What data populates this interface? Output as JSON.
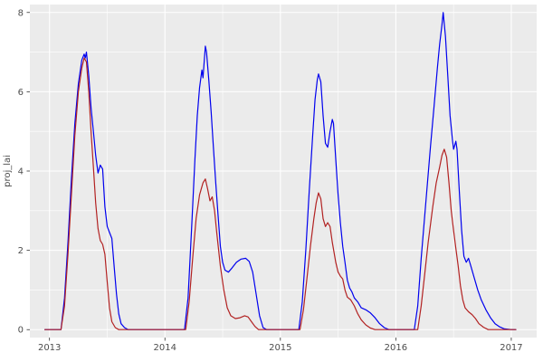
{
  "figure": {
    "background": "#FFFFFF",
    "panel_background": "#EBEBEB",
    "grid_color": "#FFFFFF",
    "axis_text_color": "#4D4D4D",
    "tick_mark_color": "#333333"
  },
  "chart_data": {
    "type": "line",
    "title": "",
    "xlabel": "",
    "ylabel": "proj_lai",
    "legend": "none",
    "grid": "major+minor",
    "xlim": [
      2012.83,
      2017.22
    ],
    "ylim": [
      -0.2,
      8.2
    ],
    "x_ticks": [
      "2013",
      "2014",
      "2015",
      "2016",
      "2017"
    ],
    "x_tick_values": [
      2013,
      2014,
      2015,
      2016,
      2017
    ],
    "y_ticks": [
      "0",
      "2",
      "4",
      "6",
      "8"
    ],
    "y_tick_values": [
      0,
      2,
      4,
      6,
      8
    ],
    "x_minor_ticks": [
      2013.5,
      2014.5,
      2015.5,
      2016.5
    ],
    "y_minor_ticks": [
      1,
      3,
      5,
      7
    ],
    "series": [
      {
        "name": "blue-series",
        "color": "#0000EE",
        "points": [
          [
            2012.96,
            0
          ],
          [
            2013.1,
            0
          ],
          [
            2013.13,
            0.8
          ],
          [
            2013.16,
            2.2
          ],
          [
            2013.19,
            3.8
          ],
          [
            2013.22,
            5.2
          ],
          [
            2013.25,
            6.2
          ],
          [
            2013.28,
            6.8
          ],
          [
            2013.3,
            6.95
          ],
          [
            2013.31,
            6.85
          ],
          [
            2013.32,
            7.0
          ],
          [
            2013.34,
            6.4
          ],
          [
            2013.36,
            5.6
          ],
          [
            2013.38,
            5.0
          ],
          [
            2013.4,
            4.4
          ],
          [
            2013.42,
            3.95
          ],
          [
            2013.44,
            4.15
          ],
          [
            2013.46,
            4.05
          ],
          [
            2013.48,
            3.1
          ],
          [
            2013.5,
            2.6
          ],
          [
            2013.52,
            2.45
          ],
          [
            2013.54,
            2.3
          ],
          [
            2013.56,
            1.6
          ],
          [
            2013.58,
            0.9
          ],
          [
            2013.6,
            0.4
          ],
          [
            2013.62,
            0.15
          ],
          [
            2013.65,
            0.05
          ],
          [
            2013.68,
            0
          ],
          [
            2014.17,
            0
          ],
          [
            2014.2,
            0.8
          ],
          [
            2014.23,
            2.5
          ],
          [
            2014.26,
            4.3
          ],
          [
            2014.28,
            5.4
          ],
          [
            2014.3,
            6.1
          ],
          [
            2014.32,
            6.55
          ],
          [
            2014.33,
            6.35
          ],
          [
            2014.35,
            7.15
          ],
          [
            2014.36,
            7.0
          ],
          [
            2014.38,
            6.3
          ],
          [
            2014.4,
            5.5
          ],
          [
            2014.42,
            4.6
          ],
          [
            2014.44,
            3.7
          ],
          [
            2014.46,
            2.9
          ],
          [
            2014.48,
            2.1
          ],
          [
            2014.5,
            1.7
          ],
          [
            2014.52,
            1.5
          ],
          [
            2014.55,
            1.45
          ],
          [
            2014.58,
            1.55
          ],
          [
            2014.62,
            1.7
          ],
          [
            2014.66,
            1.78
          ],
          [
            2014.7,
            1.8
          ],
          [
            2014.73,
            1.72
          ],
          [
            2014.76,
            1.45
          ],
          [
            2014.79,
            0.9
          ],
          [
            2014.82,
            0.35
          ],
          [
            2014.85,
            0.05
          ],
          [
            2014.88,
            0
          ],
          [
            2015.16,
            0
          ],
          [
            2015.19,
            0.7
          ],
          [
            2015.22,
            2.0
          ],
          [
            2015.25,
            3.5
          ],
          [
            2015.28,
            4.9
          ],
          [
            2015.3,
            5.8
          ],
          [
            2015.32,
            6.3
          ],
          [
            2015.33,
            6.45
          ],
          [
            2015.35,
            6.25
          ],
          [
            2015.37,
            5.4
          ],
          [
            2015.39,
            4.7
          ],
          [
            2015.41,
            4.6
          ],
          [
            2015.43,
            5.0
          ],
          [
            2015.45,
            5.3
          ],
          [
            2015.46,
            5.2
          ],
          [
            2015.48,
            4.3
          ],
          [
            2015.5,
            3.4
          ],
          [
            2015.52,
            2.7
          ],
          [
            2015.54,
            2.1
          ],
          [
            2015.56,
            1.7
          ],
          [
            2015.58,
            1.25
          ],
          [
            2015.6,
            1.05
          ],
          [
            2015.62,
            0.95
          ],
          [
            2015.64,
            0.8
          ],
          [
            2015.67,
            0.7
          ],
          [
            2015.7,
            0.55
          ],
          [
            2015.74,
            0.5
          ],
          [
            2015.78,
            0.42
          ],
          [
            2015.82,
            0.3
          ],
          [
            2015.86,
            0.15
          ],
          [
            2015.9,
            0.05
          ],
          [
            2015.94,
            0
          ],
          [
            2016.16,
            0
          ],
          [
            2016.19,
            0.6
          ],
          [
            2016.22,
            1.8
          ],
          [
            2016.26,
            3.2
          ],
          [
            2016.3,
            4.6
          ],
          [
            2016.33,
            5.6
          ],
          [
            2016.36,
            6.6
          ],
          [
            2016.38,
            7.2
          ],
          [
            2016.4,
            7.7
          ],
          [
            2016.41,
            8.0
          ],
          [
            2016.43,
            7.4
          ],
          [
            2016.45,
            6.4
          ],
          [
            2016.47,
            5.4
          ],
          [
            2016.49,
            4.8
          ],
          [
            2016.5,
            4.55
          ],
          [
            2016.52,
            4.75
          ],
          [
            2016.53,
            4.55
          ],
          [
            2016.55,
            3.5
          ],
          [
            2016.57,
            2.5
          ],
          [
            2016.59,
            1.85
          ],
          [
            2016.61,
            1.7
          ],
          [
            2016.63,
            1.8
          ],
          [
            2016.65,
            1.6
          ],
          [
            2016.68,
            1.3
          ],
          [
            2016.71,
            1.0
          ],
          [
            2016.74,
            0.75
          ],
          [
            2016.78,
            0.5
          ],
          [
            2016.82,
            0.3
          ],
          [
            2016.86,
            0.15
          ],
          [
            2016.9,
            0.07
          ],
          [
            2016.94,
            0.02
          ],
          [
            2017.0,
            0
          ],
          [
            2017.04,
            0
          ]
        ]
      },
      {
        "name": "dark-red-series",
        "color": "#B22222",
        "points": [
          [
            2012.96,
            0
          ],
          [
            2013.1,
            0
          ],
          [
            2013.13,
            0.6
          ],
          [
            2013.16,
            1.9
          ],
          [
            2013.19,
            3.4
          ],
          [
            2013.22,
            4.9
          ],
          [
            2013.25,
            6.0
          ],
          [
            2013.28,
            6.6
          ],
          [
            2013.3,
            6.85
          ],
          [
            2013.32,
            6.75
          ],
          [
            2013.34,
            6.0
          ],
          [
            2013.36,
            5.0
          ],
          [
            2013.38,
            4.1
          ],
          [
            2013.4,
            3.2
          ],
          [
            2013.42,
            2.55
          ],
          [
            2013.44,
            2.25
          ],
          [
            2013.46,
            2.15
          ],
          [
            2013.48,
            1.9
          ],
          [
            2013.5,
            1.2
          ],
          [
            2013.52,
            0.55
          ],
          [
            2013.54,
            0.2
          ],
          [
            2013.57,
            0.05
          ],
          [
            2013.6,
            0
          ],
          [
            2014.18,
            0
          ],
          [
            2014.21,
            0.7
          ],
          [
            2014.24,
            1.8
          ],
          [
            2014.27,
            2.8
          ],
          [
            2014.3,
            3.4
          ],
          [
            2014.33,
            3.7
          ],
          [
            2014.35,
            3.8
          ],
          [
            2014.37,
            3.55
          ],
          [
            2014.39,
            3.25
          ],
          [
            2014.41,
            3.35
          ],
          [
            2014.43,
            3.0
          ],
          [
            2014.45,
            2.4
          ],
          [
            2014.48,
            1.6
          ],
          [
            2014.51,
            1.0
          ],
          [
            2014.54,
            0.55
          ],
          [
            2014.57,
            0.35
          ],
          [
            2014.61,
            0.28
          ],
          [
            2014.65,
            0.3
          ],
          [
            2014.69,
            0.35
          ],
          [
            2014.72,
            0.32
          ],
          [
            2014.75,
            0.2
          ],
          [
            2014.78,
            0.08
          ],
          [
            2014.81,
            0
          ],
          [
            2015.17,
            0
          ],
          [
            2015.2,
            0.5
          ],
          [
            2015.23,
            1.3
          ],
          [
            2015.26,
            2.1
          ],
          [
            2015.29,
            2.8
          ],
          [
            2015.31,
            3.2
          ],
          [
            2015.33,
            3.45
          ],
          [
            2015.35,
            3.3
          ],
          [
            2015.37,
            2.8
          ],
          [
            2015.39,
            2.6
          ],
          [
            2015.41,
            2.7
          ],
          [
            2015.43,
            2.6
          ],
          [
            2015.45,
            2.2
          ],
          [
            2015.48,
            1.7
          ],
          [
            2015.5,
            1.45
          ],
          [
            2015.52,
            1.35
          ],
          [
            2015.54,
            1.28
          ],
          [
            2015.56,
            1.0
          ],
          [
            2015.58,
            0.82
          ],
          [
            2015.61,
            0.75
          ],
          [
            2015.64,
            0.6
          ],
          [
            2015.67,
            0.4
          ],
          [
            2015.7,
            0.25
          ],
          [
            2015.74,
            0.12
          ],
          [
            2015.78,
            0.04
          ],
          [
            2015.82,
            0
          ],
          [
            2016.19,
            0
          ],
          [
            2016.22,
            0.6
          ],
          [
            2016.25,
            1.4
          ],
          [
            2016.28,
            2.2
          ],
          [
            2016.32,
            3.1
          ],
          [
            2016.35,
            3.7
          ],
          [
            2016.38,
            4.1
          ],
          [
            2016.4,
            4.4
          ],
          [
            2016.42,
            4.55
          ],
          [
            2016.44,
            4.35
          ],
          [
            2016.46,
            3.7
          ],
          [
            2016.48,
            3.0
          ],
          [
            2016.5,
            2.5
          ],
          [
            2016.52,
            2.05
          ],
          [
            2016.54,
            1.6
          ],
          [
            2016.56,
            1.1
          ],
          [
            2016.58,
            0.75
          ],
          [
            2016.6,
            0.55
          ],
          [
            2016.63,
            0.45
          ],
          [
            2016.66,
            0.38
          ],
          [
            2016.69,
            0.28
          ],
          [
            2016.72,
            0.15
          ],
          [
            2016.76,
            0.06
          ],
          [
            2016.8,
            0
          ],
          [
            2017.04,
            0
          ]
        ]
      }
    ]
  }
}
